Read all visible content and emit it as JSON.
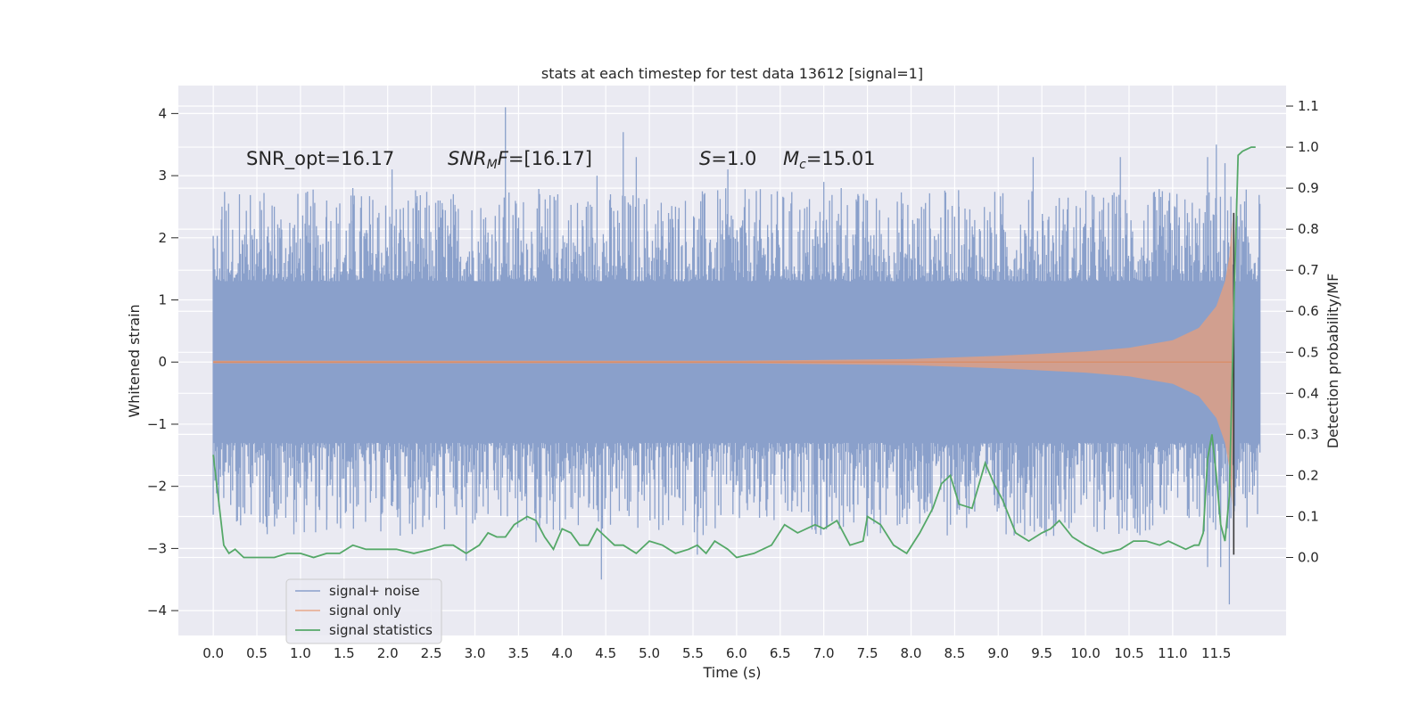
{
  "chart_data": {
    "type": "line",
    "title": "stats at each timestep for test data 13612 [signal=1]",
    "xlabel": "Time (s)",
    "ylabel": "Whitened strain",
    "ylabel_right": "Detection probability/MF",
    "xlim": [
      -0.4,
      12.3
    ],
    "ylim": [
      -4.4,
      4.45
    ],
    "ylim_right": [
      -0.19,
      1.15
    ],
    "grid": true,
    "legend_position": "lower-left",
    "x_ticks": [
      "0.0",
      "0.5",
      "1.0",
      "1.5",
      "2.0",
      "2.5",
      "3.0",
      "3.5",
      "4.0",
      "4.5",
      "5.0",
      "5.5",
      "6.0",
      "6.5",
      "7.0",
      "7.5",
      "8.0",
      "8.5",
      "9.0",
      "9.5",
      "10.0",
      "10.5",
      "11.0",
      "11.5"
    ],
    "y_ticks": [
      "4",
      "3",
      "2",
      "1",
      "0",
      "−1",
      "−2",
      "−3",
      "−4"
    ],
    "y_ticks_right": [
      "1.1",
      "1.0",
      "0.9",
      "0.8",
      "0.7",
      "0.6",
      "0.5",
      "0.4",
      "0.3",
      "0.2",
      "0.1",
      "0.0"
    ],
    "annotations": {
      "snr_opt": "SNR_opt=16.17",
      "snr_mf_base": "SNR",
      "snr_mf_sub": "M",
      "snr_mf_var": "F",
      "snr_mf_value": "=[16.17]",
      "s_var": "S",
      "s_value": "=1.0",
      "mc_base": "M",
      "mc_sub": "c",
      "mc_value": "=15.01"
    },
    "series": [
      {
        "name": "signal+ noise",
        "color": "#8aa0cb",
        "axis": "left",
        "description_x_range": [
          0.0,
          12.0
        ],
        "typical_band": [
          -1.3,
          1.3
        ],
        "peaks_x": [
          0.1,
          0.3,
          0.7,
          1.3,
          1.6,
          1.9,
          2.05,
          2.6,
          3.1,
          3.35,
          3.95,
          4.4,
          4.7,
          4.85,
          5.3,
          5.9,
          6.4,
          7.0,
          7.2,
          7.5,
          7.9,
          8.55,
          9.4,
          10.4,
          11.4,
          11.5,
          11.6
        ],
        "peaks_y": [
          2.5,
          2.7,
          2.5,
          2.6,
          2.8,
          2.4,
          3.1,
          2.6,
          2.3,
          4.1,
          2.7,
          3.0,
          3.7,
          3.3,
          2.5,
          3.1,
          2.7,
          2.9,
          2.8,
          2.6,
          2.3,
          2.5,
          3.3,
          3.3,
          3.3,
          3.5,
          3.2
        ],
        "troughs_x": [
          0.2,
          1.3,
          2.25,
          2.9,
          3.7,
          4.45,
          5.55,
          6.9,
          7.5,
          7.9,
          8.1,
          9.55,
          10.6,
          11.4,
          11.55,
          11.65
        ],
        "troughs_y": [
          -2.3,
          -2.7,
          -2.6,
          -3.2,
          -2.9,
          -3.5,
          -3.1,
          -2.7,
          -2.8,
          -2.5,
          -2.6,
          -2.8,
          -2.5,
          -3.3,
          -3.3,
          -3.9
        ]
      },
      {
        "name": "signal only",
        "color": "#dd8452",
        "axis": "left",
        "x": [
          0.0,
          6.0,
          8.0,
          9.0,
          10.0,
          10.5,
          11.0,
          11.3,
          11.5,
          11.6,
          11.65,
          11.68,
          11.7
        ],
        "envelope": [
          0.02,
          0.02,
          0.05,
          0.1,
          0.17,
          0.23,
          0.35,
          0.55,
          0.9,
          1.3,
          1.7,
          2.3,
          0.0
        ]
      },
      {
        "name": "signal statistics",
        "color": "#55a868",
        "axis": "right",
        "x": [
          0.0,
          0.05,
          0.12,
          0.18,
          0.25,
          0.35,
          0.45,
          0.55,
          0.7,
          0.85,
          1.0,
          1.15,
          1.3,
          1.45,
          1.6,
          1.75,
          1.9,
          2.1,
          2.3,
          2.5,
          2.65,
          2.75,
          2.9,
          3.05,
          3.15,
          3.25,
          3.35,
          3.45,
          3.6,
          3.7,
          3.8,
          3.9,
          4.0,
          4.1,
          4.2,
          4.3,
          4.4,
          4.5,
          4.6,
          4.7,
          4.85,
          5.0,
          5.15,
          5.3,
          5.45,
          5.55,
          5.65,
          5.75,
          5.9,
          6.0,
          6.2,
          6.4,
          6.55,
          6.7,
          6.9,
          7.0,
          7.15,
          7.3,
          7.45,
          7.5,
          7.65,
          7.8,
          7.95,
          8.1,
          8.25,
          8.35,
          8.45,
          8.55,
          8.7,
          8.85,
          8.95,
          9.05,
          9.2,
          9.35,
          9.5,
          9.6,
          9.7,
          9.85,
          10.0,
          10.2,
          10.4,
          10.55,
          10.7,
          10.85,
          10.95,
          11.05,
          11.15,
          11.25,
          11.3,
          11.35,
          11.4,
          11.45,
          11.5,
          11.55,
          11.6,
          11.65,
          11.7,
          11.75,
          11.8,
          11.9,
          11.95
        ],
        "y": [
          0.25,
          0.16,
          0.03,
          0.01,
          0.02,
          0.0,
          0.0,
          0.0,
          0.0,
          0.01,
          0.01,
          0.0,
          0.01,
          0.01,
          0.03,
          0.02,
          0.02,
          0.02,
          0.01,
          0.02,
          0.03,
          0.03,
          0.01,
          0.03,
          0.06,
          0.05,
          0.05,
          0.08,
          0.1,
          0.09,
          0.05,
          0.02,
          0.07,
          0.06,
          0.03,
          0.03,
          0.07,
          0.05,
          0.03,
          0.03,
          0.01,
          0.04,
          0.03,
          0.01,
          0.02,
          0.03,
          0.01,
          0.04,
          0.02,
          0.0,
          0.01,
          0.03,
          0.08,
          0.06,
          0.08,
          0.07,
          0.09,
          0.03,
          0.04,
          0.1,
          0.08,
          0.03,
          0.01,
          0.06,
          0.12,
          0.18,
          0.2,
          0.13,
          0.12,
          0.23,
          0.18,
          0.14,
          0.06,
          0.04,
          0.06,
          0.07,
          0.09,
          0.05,
          0.03,
          0.01,
          0.02,
          0.04,
          0.04,
          0.03,
          0.04,
          0.03,
          0.02,
          0.03,
          0.03,
          0.06,
          0.24,
          0.3,
          0.2,
          0.08,
          0.04,
          0.15,
          0.6,
          0.98,
          0.99,
          1.0,
          1.0
        ]
      }
    ]
  }
}
